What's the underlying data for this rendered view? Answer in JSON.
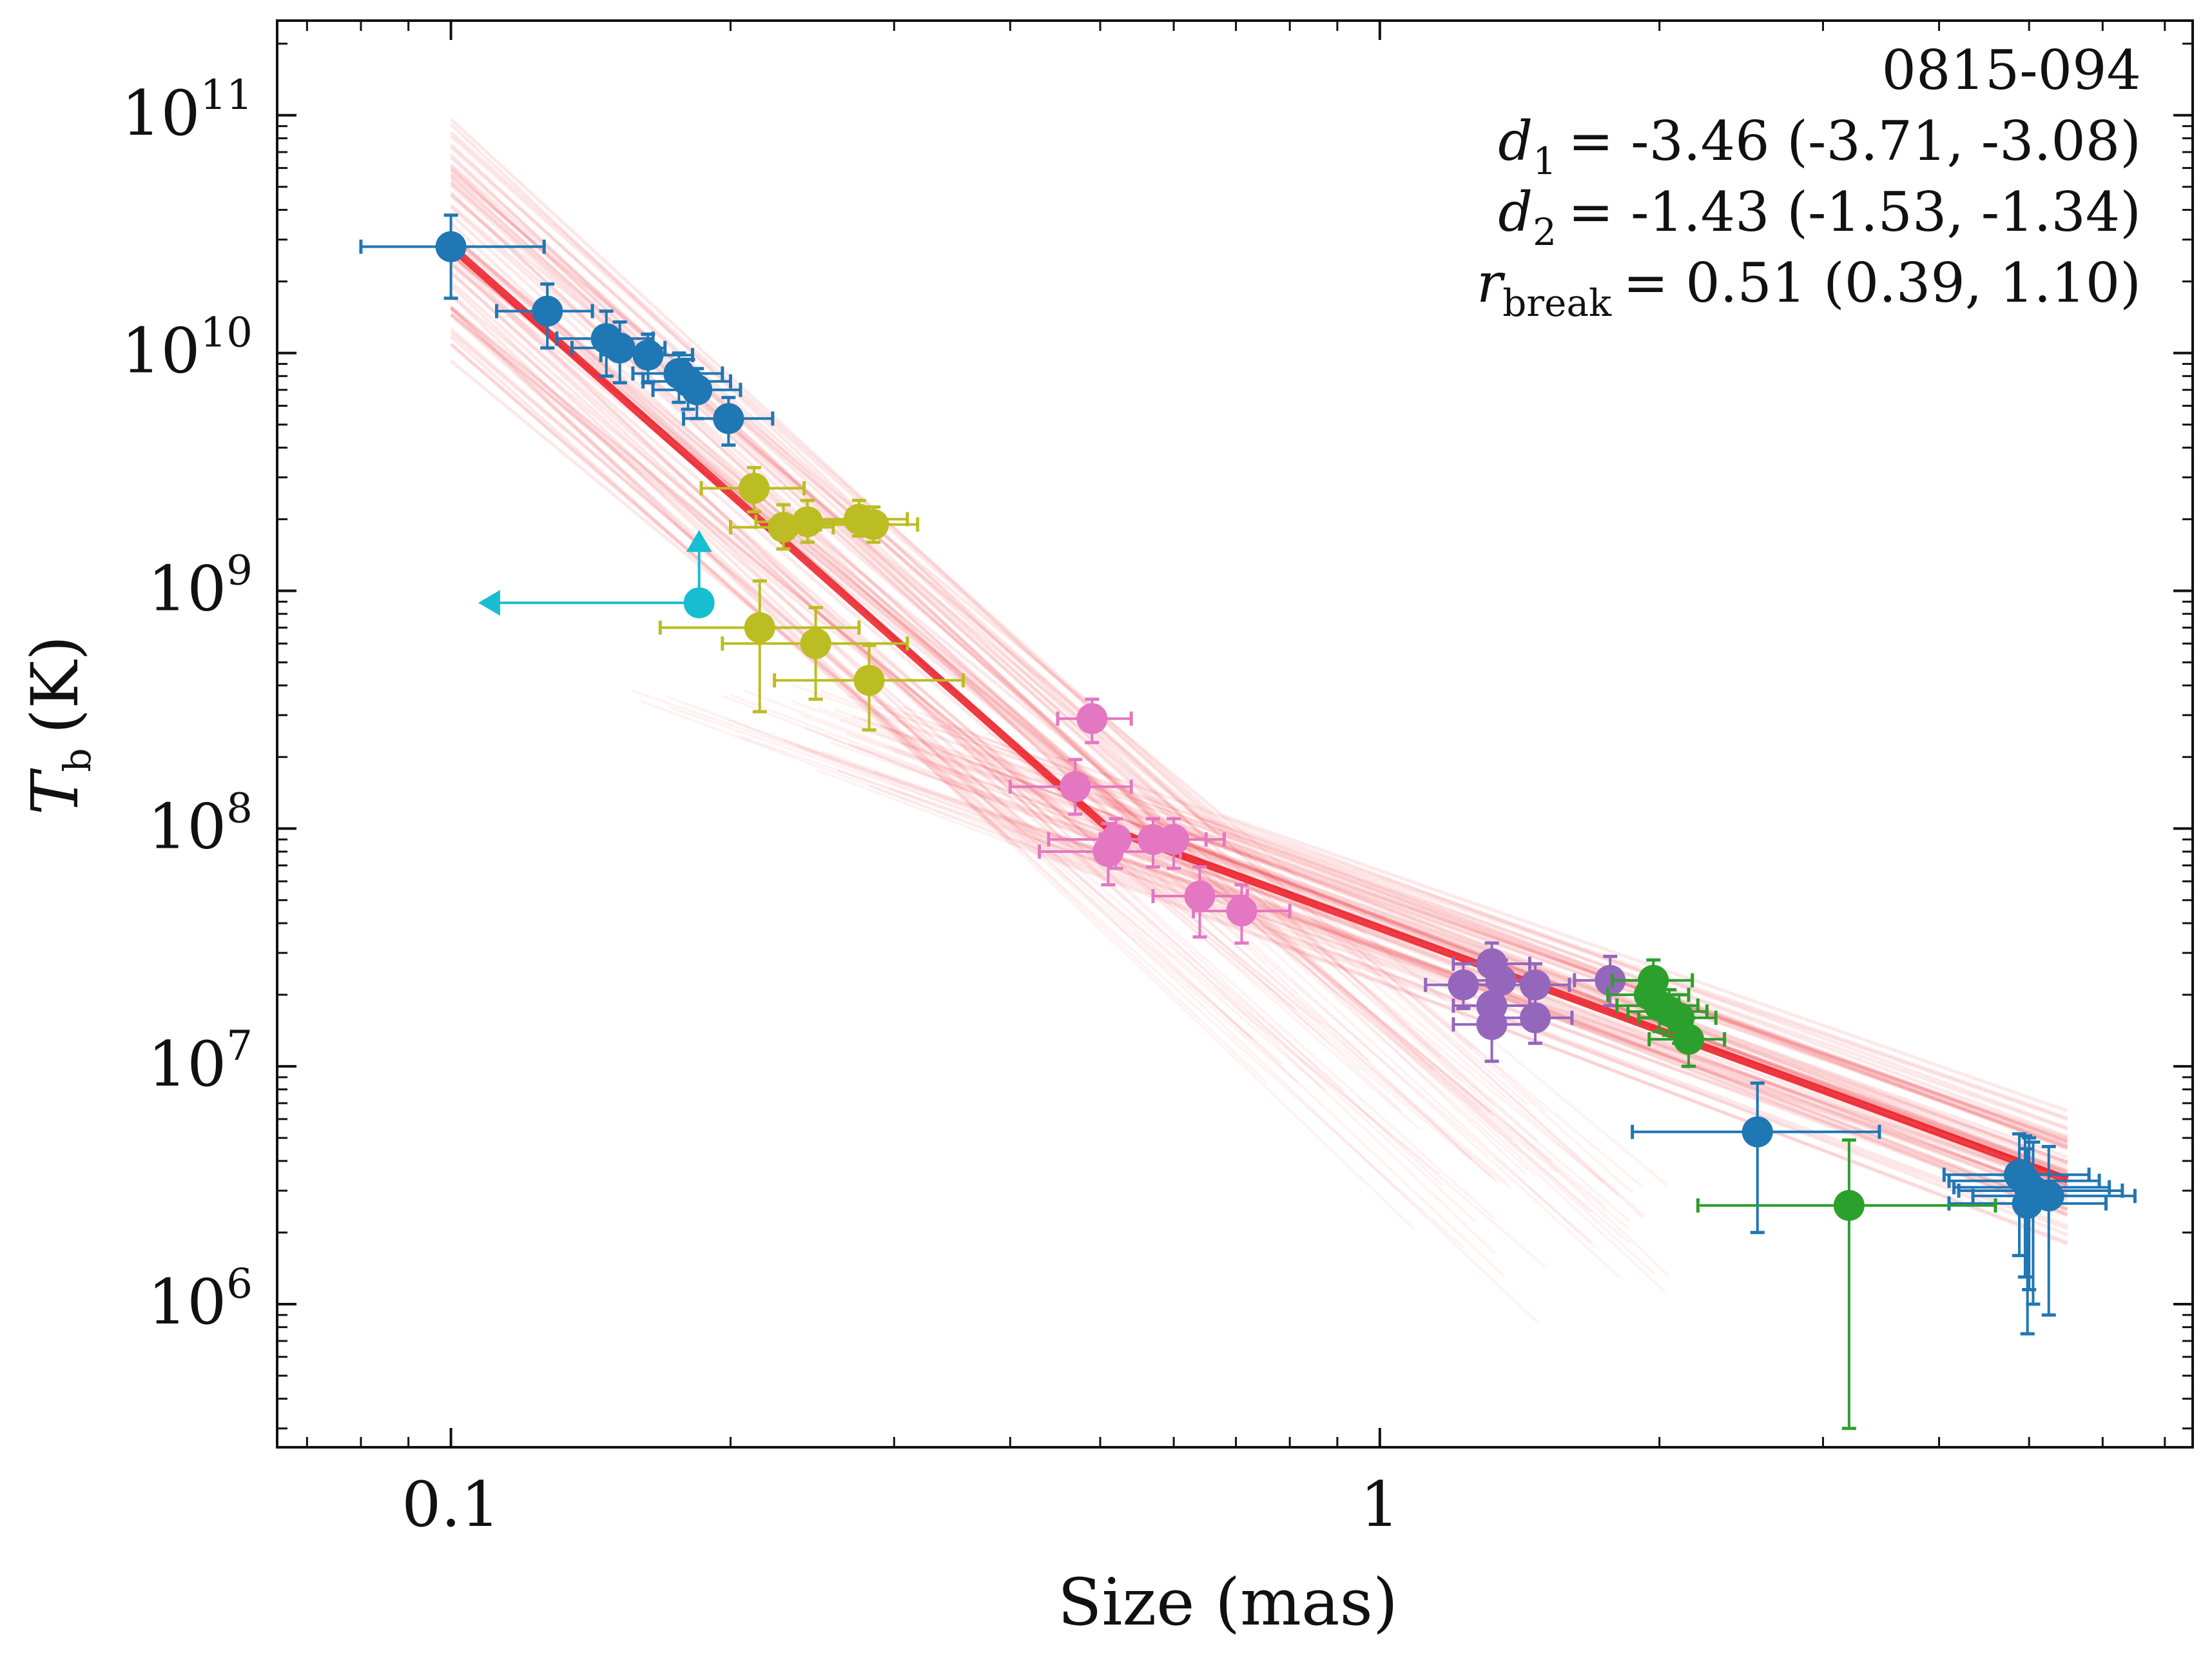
{
  "chart_data": {
    "type": "scatter",
    "xscale": "log",
    "yscale": "log",
    "xlim": [
      0.065,
      7.5
    ],
    "ylim": [
      250000,
      250000000000
    ],
    "xlabel": "Size (mas)",
    "ylabel": {
      "base": "T",
      "sub": "b",
      "unit": "(K)"
    },
    "xticks": [
      {
        "value": 0.1,
        "label": "0.1"
      },
      {
        "value": 1,
        "label": "1"
      }
    ],
    "yticks": [
      {
        "value": 1000000.0,
        "base": "10",
        "exp": "6"
      },
      {
        "value": 10000000.0,
        "base": "10",
        "exp": "7"
      },
      {
        "value": 100000000.0,
        "base": "10",
        "exp": "8"
      },
      {
        "value": 1000000000.0,
        "base": "10",
        "exp": "9"
      },
      {
        "value": 10000000000.0,
        "base": "10",
        "exp": "10"
      },
      {
        "value": 100000000000.0,
        "base": "10",
        "exp": "11"
      }
    ],
    "grid": false,
    "annotations": {
      "source": "0815-094",
      "d1": {
        "sym": "d",
        "sub": "1",
        "value": "= -3.46 (-3.71, -3.08)"
      },
      "d2": {
        "sym": "d",
        "sub": "2",
        "value": "= -1.43 (-1.53, -1.34)"
      },
      "rbreak": {
        "sym": "r",
        "sub": "break",
        "value": "= 0.51 (0.39, 1.10)"
      }
    },
    "fit": {
      "color": "#e8000b",
      "d1": -3.46,
      "d2": -1.43,
      "r_break": 0.51,
      "T_break": 100000000
    },
    "series": [
      {
        "color": "#1f77b4",
        "points": [
          {
            "x": 0.1,
            "y": 28000000000.0,
            "xerr": [
              0.08,
              0.126
            ],
            "yerr": [
              17000000000.0,
              38000000000.0
            ]
          },
          {
            "x": 0.127,
            "y": 15000000000.0,
            "xerr": [
              0.112,
              0.142
            ],
            "yerr": [
              10500000000.0,
              19500000000.0
            ]
          },
          {
            "x": 0.147,
            "y": 11500000000.0,
            "xerr": [
              0.13,
              0.165
            ],
            "yerr": [
              8000000000.0,
              15000000000.0
            ]
          },
          {
            "x": 0.152,
            "y": 10500000000.0,
            "xerr": [
              0.135,
              0.17
            ],
            "yerr": [
              7500000000.0,
              13500000000.0
            ]
          },
          {
            "x": 0.163,
            "y": 9800000000.0,
            "xerr": [
              0.145,
              0.182
            ],
            "yerr": [
              7500000000.0,
              12000000000.0
            ]
          },
          {
            "x": 0.176,
            "y": 8200000000.0,
            "xerr": [
              0.157,
              0.196
            ],
            "yerr": [
              6200000000.0,
              10000000000.0
            ]
          },
          {
            "x": 0.18,
            "y": 7600000000.0,
            "xerr": [
              0.161,
              0.2
            ],
            "yerr": [
              5800000000.0,
              9400000000.0
            ]
          },
          {
            "x": 0.184,
            "y": 7000000000.0,
            "xerr": [
              0.165,
              0.205
            ],
            "yerr": [
              5300000000.0,
              8600000000.0
            ]
          },
          {
            "x": 0.199,
            "y": 5300000000.0,
            "xerr": [
              0.178,
              0.222
            ],
            "yerr": [
              4100000000.0,
              6500000000.0
            ]
          },
          {
            "x": 2.55,
            "y": 5300000.0,
            "xerr": [
              1.87,
              3.45
            ],
            "yerr": [
              2000000.0,
              8500000.0
            ]
          },
          {
            "x": 4.88,
            "y": 3500000.0,
            "xerr": [
              4.05,
              5.8
            ],
            "yerr": [
              1600000.0,
              5200000.0
            ]
          },
          {
            "x": 4.95,
            "y": 3300000.0,
            "xerr": [
              4.1,
              5.95
            ],
            "yerr": [
              1300000.0,
              5100000.0
            ]
          },
          {
            "x": 5.0,
            "y": 3100000.0,
            "xerr": [
              4.15,
              6.1
            ],
            "yerr": [
              1150000.0,
              5000000.0
            ]
          },
          {
            "x": 5.05,
            "y": 3000000.0,
            "xerr": [
              4.2,
              6.3
            ],
            "yerr": [
              1000000.0,
              4800000.0
            ]
          },
          {
            "x": 4.98,
            "y": 2650000.0,
            "xerr": [
              4.1,
              6.05
            ],
            "yerr": [
              750000.0,
              4500000.0
            ]
          },
          {
            "x": 5.25,
            "y": 2850000.0,
            "xerr": [
              4.35,
              6.5
            ],
            "yerr": [
              900000.0,
              4600000.0
            ]
          }
        ]
      },
      {
        "color": "#bcbd22",
        "points": [
          {
            "x": 0.212,
            "y": 2700000000.0,
            "xerr": [
              0.186,
              0.24
            ],
            "yerr": [
              2150000000.0,
              3300000000.0
            ]
          },
          {
            "x": 0.228,
            "y": 1850000000.0,
            "xerr": [
              0.2,
              0.258
            ],
            "yerr": [
              1500000000.0,
              2300000000.0
            ]
          },
          {
            "x": 0.242,
            "y": 1950000000.0,
            "xerr": [
              0.213,
              0.274
            ],
            "yerr": [
              1600000000.0,
              2400000000.0
            ]
          },
          {
            "x": 0.275,
            "y": 2000000000.0,
            "xerr": [
              0.244,
              0.31
            ],
            "yerr": [
              1700000000.0,
              2400000000.0
            ]
          },
          {
            "x": 0.285,
            "y": 1900000000.0,
            "xerr": [
              0.25,
              0.318
            ],
            "yerr": [
              1600000000.0,
              2250000000.0
            ]
          },
          {
            "x": 0.215,
            "y": 700000000.0,
            "xerr": [
              0.168,
              0.275
            ],
            "yerr": [
              310000000.0,
              1100000000.0
            ]
          },
          {
            "x": 0.247,
            "y": 600000000.0,
            "xerr": [
              0.196,
              0.31
            ],
            "yerr": [
              350000000.0,
              850000000.0
            ]
          },
          {
            "x": 0.282,
            "y": 420000000.0,
            "xerr": [
              0.223,
              0.356
            ],
            "yerr": [
              260000000.0,
              590000000.0
            ]
          }
        ]
      },
      {
        "color": "#17becf",
        "limit": true,
        "points": [
          {
            "x": 0.185,
            "y": 890000000.0,
            "xarrow": 0.107,
            "yarrow": 1800000000.0
          }
        ]
      },
      {
        "color": "#e377c2",
        "points": [
          {
            "x": 0.49,
            "y": 290000000.0,
            "xerr": [
              0.45,
              0.54
            ],
            "yerr": [
              230000000.0,
              350000000.0
            ]
          },
          {
            "x": 0.47,
            "y": 150000000.0,
            "xerr": [
              0.4,
              0.54
            ],
            "yerr": [
              115000000.0,
              195000000.0
            ]
          },
          {
            "x": 0.52,
            "y": 90000000.0,
            "xerr": [
              0.44,
              0.6
            ],
            "yerr": [
              68000000.0,
              110000000.0
            ]
          },
          {
            "x": 0.51,
            "y": 80000000.0,
            "xerr": [
              0.43,
              0.61
            ],
            "yerr": [
              58000000.0,
              105000000.0
            ]
          },
          {
            "x": 0.57,
            "y": 90000000.0,
            "xerr": [
              0.5,
              0.65
            ],
            "yerr": [
              69000000.0,
              110000000.0
            ]
          },
          {
            "x": 0.6,
            "y": 90000000.0,
            "xerr": [
              0.52,
              0.68
            ],
            "yerr": [
              68000000.0,
              110000000.0
            ]
          },
          {
            "x": 0.64,
            "y": 52000000.0,
            "xerr": [
              0.57,
              0.72
            ],
            "yerr": [
              35000000.0,
              69000000.0
            ]
          },
          {
            "x": 0.71,
            "y": 45000000.0,
            "xerr": [
              0.63,
              0.8
            ],
            "yerr": [
              33000000.0,
              58000000.0
            ]
          }
        ]
      },
      {
        "color": "#9467bd",
        "points": [
          {
            "x": 1.23,
            "y": 22000000.0,
            "xerr": [
              1.12,
              1.34
            ],
            "yerr": [
              17500000.0,
              27000000.0
            ]
          },
          {
            "x": 1.32,
            "y": 27000000.0,
            "xerr": [
              1.2,
              1.45
            ],
            "yerr": [
              22000000.0,
              33000000.0
            ]
          },
          {
            "x": 1.35,
            "y": 23000000.0,
            "xerr": [
              1.23,
              1.48
            ],
            "yerr": [
              18000000.0,
              28000000.0
            ]
          },
          {
            "x": 1.32,
            "y": 18000000.0,
            "xerr": [
              1.2,
              1.45
            ],
            "yerr": [
              14000000.0,
              22000000.0
            ]
          },
          {
            "x": 1.32,
            "y": 15000000.0,
            "xerr": [
              1.2,
              1.45
            ],
            "yerr": [
              10500000.0,
              19500000.0
            ]
          },
          {
            "x": 1.47,
            "y": 22000000.0,
            "xerr": [
              1.34,
              1.6
            ],
            "yerr": [
              17500000.0,
              27000000.0
            ]
          },
          {
            "x": 1.47,
            "y": 16000000.0,
            "xerr": [
              1.34,
              1.61
            ],
            "yerr": [
              12500000.0,
              20000000.0
            ]
          },
          {
            "x": 1.77,
            "y": 23000000.0,
            "xerr": [
              1.62,
              1.94
            ],
            "yerr": [
              18000000.0,
              29000000.0
            ]
          }
        ]
      },
      {
        "color": "#2ca02c",
        "points": [
          {
            "x": 1.97,
            "y": 23000000.0,
            "xerr": [
              1.78,
              2.17
            ],
            "yerr": [
              18500000.0,
              28000000.0
            ]
          },
          {
            "x": 1.95,
            "y": 20000000.0,
            "xerr": [
              1.76,
              2.15
            ],
            "yerr": [
              16000000.0,
              25000000.0
            ]
          },
          {
            "x": 2.0,
            "y": 18000000.0,
            "xerr": [
              1.8,
              2.2
            ],
            "yerr": [
              14000000.0,
              22000000.0
            ]
          },
          {
            "x": 2.05,
            "y": 17000000.0,
            "xerr": [
              1.85,
              2.25
            ],
            "yerr": [
              13500000.0,
              21000000.0
            ]
          },
          {
            "x": 2.1,
            "y": 16000000.0,
            "xerr": [
              1.9,
              2.3
            ],
            "yerr": [
              12500000.0,
              20000000.0
            ]
          },
          {
            "x": 2.15,
            "y": 13000000.0,
            "xerr": [
              1.95,
              2.35
            ],
            "yerr": [
              10000000.0,
              16000000.0
            ]
          },
          {
            "x": 3.2,
            "y": 2600000.0,
            "xerr": [
              2.2,
              4.6
            ],
            "yerr": [
              300000.0,
              4900000.0
            ]
          }
        ]
      }
    ]
  }
}
